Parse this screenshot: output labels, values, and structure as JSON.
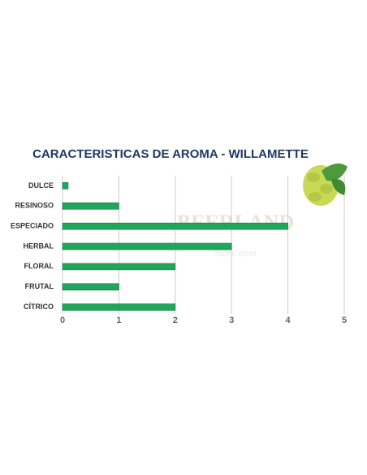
{
  "chart_data": {
    "type": "bar",
    "orientation": "horizontal",
    "title": "CARACTERISTICAS DE AROMA  - WILLAMETTE",
    "categories": [
      "DULCE",
      "RESINOSO",
      "ESPECIADO",
      "HERBAL",
      "FLORAL",
      "FRUTAL",
      "CÍTRICO"
    ],
    "values": [
      0.1,
      1,
      4,
      3,
      2,
      1,
      2
    ],
    "color": "#1fa65a",
    "xlim": [
      0,
      5
    ],
    "xticks": [
      0,
      1,
      2,
      3,
      4,
      5
    ],
    "grid": true
  },
  "watermark": {
    "brand": "BEERLAND",
    "sub": "Store.com"
  }
}
